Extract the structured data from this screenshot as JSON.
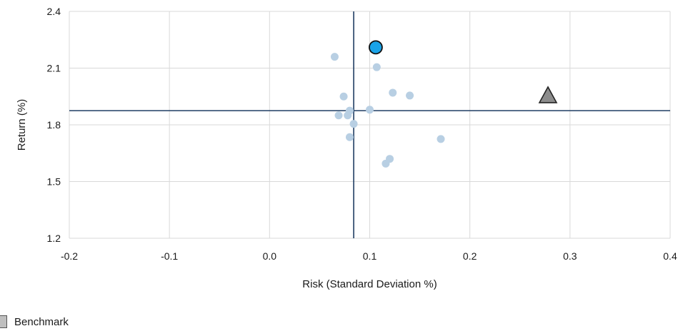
{
  "chart_data": {
    "type": "scatter",
    "xlabel": "Risk (Standard Deviation %)",
    "ylabel": "Return (%)",
    "xlim": [
      -0.2,
      0.4
    ],
    "ylim": [
      1.2,
      2.4
    ],
    "xticks": [
      "-0.2",
      "-0.1",
      "0.0",
      "0.1",
      "0.2",
      "0.3",
      "0.4"
    ],
    "yticks": [
      "1.2",
      "1.5",
      "1.8",
      "2.1",
      "2.4"
    ],
    "grid": true,
    "reference_lines": {
      "x": 0.084,
      "y": 1.875
    },
    "series": [
      {
        "role": "peers",
        "marker": "circle",
        "color": "#b8cfe3",
        "points": [
          [
            0.065,
            2.16
          ],
          [
            0.107,
            2.105
          ],
          [
            0.123,
            1.97
          ],
          [
            0.14,
            1.955
          ],
          [
            0.074,
            1.95
          ],
          [
            0.08,
            1.875
          ],
          [
            0.1,
            1.88
          ],
          [
            0.069,
            1.85
          ],
          [
            0.078,
            1.85
          ],
          [
            0.084,
            1.805
          ],
          [
            0.08,
            1.735
          ],
          [
            0.171,
            1.725
          ],
          [
            0.12,
            1.62
          ],
          [
            0.116,
            1.595
          ]
        ]
      },
      {
        "role": "fund",
        "marker": "circle",
        "color": "#1aa3e8",
        "points": [
          [
            0.106,
            2.21
          ]
        ]
      },
      {
        "name": "Benchmark",
        "role": "benchmark",
        "marker": "triangle",
        "color": "#8c8c8c",
        "points": [
          [
            0.278,
            1.955
          ]
        ]
      }
    ]
  },
  "legend": {
    "benchmark_label": "Benchmark"
  }
}
